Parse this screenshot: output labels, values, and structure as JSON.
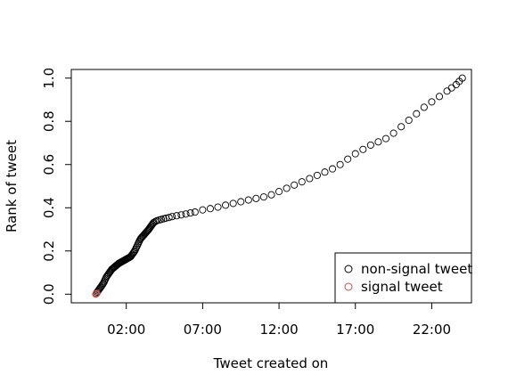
{
  "chart_data": {
    "type": "scatter",
    "title": "",
    "xlabel": "Tweet created on",
    "ylabel": "Rank of tweet",
    "xlim": [
      -1.6,
      24.6
    ],
    "ylim": [
      -0.04,
      1.04
    ],
    "x_unit": "hour of day",
    "x_ticks": [
      {
        "value": 2,
        "label": "02:00"
      },
      {
        "value": 7,
        "label": "07:00"
      },
      {
        "value": 12,
        "label": "12:00"
      },
      {
        "value": 17,
        "label": "17:00"
      },
      {
        "value": 22,
        "label": "22:00"
      }
    ],
    "y_ticks": [
      {
        "value": 0.0,
        "label": "0.0"
      },
      {
        "value": 0.2,
        "label": "0.2"
      },
      {
        "value": 0.4,
        "label": "0.4"
      },
      {
        "value": 0.6,
        "label": "0.6"
      },
      {
        "value": 0.8,
        "label": "0.8"
      },
      {
        "value": 1.0,
        "label": "1.0"
      }
    ],
    "grid": false,
    "legend_position": "bottom-right",
    "marker": "open-circle",
    "series": [
      {
        "name": "non-signal tweet",
        "color": "#000000",
        "points": [
          [
            0.05,
            0.005
          ],
          [
            0.1,
            0.01
          ],
          [
            0.15,
            0.015
          ],
          [
            0.2,
            0.02
          ],
          [
            0.25,
            0.025
          ],
          [
            0.3,
            0.03
          ],
          [
            0.35,
            0.035
          ],
          [
            0.4,
            0.04
          ],
          [
            0.45,
            0.045
          ],
          [
            0.5,
            0.05
          ],
          [
            0.55,
            0.057
          ],
          [
            0.6,
            0.065
          ],
          [
            0.65,
            0.072
          ],
          [
            0.7,
            0.08
          ],
          [
            0.75,
            0.085
          ],
          [
            0.8,
            0.09
          ],
          [
            0.85,
            0.095
          ],
          [
            0.9,
            0.1
          ],
          [
            0.95,
            0.105
          ],
          [
            1.0,
            0.11
          ],
          [
            1.05,
            0.115
          ],
          [
            1.1,
            0.118
          ],
          [
            1.15,
            0.121
          ],
          [
            1.2,
            0.124
          ],
          [
            1.25,
            0.127
          ],
          [
            1.3,
            0.13
          ],
          [
            1.35,
            0.133
          ],
          [
            1.4,
            0.136
          ],
          [
            1.45,
            0.139
          ],
          [
            1.5,
            0.142
          ],
          [
            1.55,
            0.144
          ],
          [
            1.6,
            0.146
          ],
          [
            1.65,
            0.148
          ],
          [
            1.7,
            0.15
          ],
          [
            1.75,
            0.152
          ],
          [
            1.8,
            0.154
          ],
          [
            1.85,
            0.156
          ],
          [
            1.9,
            0.158
          ],
          [
            1.95,
            0.16
          ],
          [
            2.0,
            0.162
          ],
          [
            2.05,
            0.164
          ],
          [
            2.1,
            0.166
          ],
          [
            2.15,
            0.168
          ],
          [
            2.2,
            0.17
          ],
          [
            2.25,
            0.172
          ],
          [
            2.3,
            0.175
          ],
          [
            2.35,
            0.18
          ],
          [
            2.4,
            0.185
          ],
          [
            2.45,
            0.19
          ],
          [
            2.5,
            0.195
          ],
          [
            2.55,
            0.2
          ],
          [
            2.6,
            0.207
          ],
          [
            2.65,
            0.215
          ],
          [
            2.7,
            0.222
          ],
          [
            2.75,
            0.23
          ],
          [
            2.8,
            0.237
          ],
          [
            2.85,
            0.245
          ],
          [
            2.9,
            0.252
          ],
          [
            2.95,
            0.258
          ],
          [
            3.0,
            0.262
          ],
          [
            3.05,
            0.266
          ],
          [
            3.1,
            0.27
          ],
          [
            3.15,
            0.274
          ],
          [
            3.2,
            0.278
          ],
          [
            3.25,
            0.282
          ],
          [
            3.3,
            0.286
          ],
          [
            3.35,
            0.29
          ],
          [
            3.4,
            0.294
          ],
          [
            3.45,
            0.298
          ],
          [
            3.5,
            0.303
          ],
          [
            3.55,
            0.308
          ],
          [
            3.6,
            0.313
          ],
          [
            3.65,
            0.318
          ],
          [
            3.7,
            0.323
          ],
          [
            3.75,
            0.328
          ],
          [
            3.8,
            0.332
          ],
          [
            3.9,
            0.336
          ],
          [
            4.0,
            0.34
          ],
          [
            4.15,
            0.343
          ],
          [
            4.3,
            0.346
          ],
          [
            4.45,
            0.349
          ],
          [
            4.6,
            0.352
          ],
          [
            4.8,
            0.355
          ],
          [
            5.0,
            0.359
          ],
          [
            5.3,
            0.363
          ],
          [
            5.6,
            0.367
          ],
          [
            5.9,
            0.371
          ],
          [
            6.2,
            0.376
          ],
          [
            6.5,
            0.38
          ],
          [
            7.0,
            0.39
          ],
          [
            7.5,
            0.396
          ],
          [
            8.0,
            0.403
          ],
          [
            8.5,
            0.412
          ],
          [
            9.0,
            0.42
          ],
          [
            9.5,
            0.428
          ],
          [
            10.0,
            0.436
          ],
          [
            10.5,
            0.443
          ],
          [
            11.0,
            0.45
          ],
          [
            11.5,
            0.46
          ],
          [
            12.0,
            0.475
          ],
          [
            12.5,
            0.49
          ],
          [
            13.0,
            0.505
          ],
          [
            13.5,
            0.52
          ],
          [
            14.0,
            0.535
          ],
          [
            14.5,
            0.55
          ],
          [
            15.0,
            0.565
          ],
          [
            15.5,
            0.58
          ],
          [
            16.0,
            0.6
          ],
          [
            16.5,
            0.625
          ],
          [
            17.0,
            0.65
          ],
          [
            17.5,
            0.67
          ],
          [
            18.0,
            0.69
          ],
          [
            18.5,
            0.705
          ],
          [
            19.0,
            0.72
          ],
          [
            19.5,
            0.745
          ],
          [
            20.0,
            0.775
          ],
          [
            20.5,
            0.805
          ],
          [
            21.0,
            0.835
          ],
          [
            21.5,
            0.865
          ],
          [
            22.0,
            0.89
          ],
          [
            22.5,
            0.915
          ],
          [
            23.0,
            0.94
          ],
          [
            23.3,
            0.955
          ],
          [
            23.6,
            0.97
          ],
          [
            23.8,
            0.985
          ],
          [
            24.0,
            1.0
          ]
        ]
      },
      {
        "name": "signal tweet",
        "color": "#c0504d",
        "points": [
          [
            0.0,
            0.0
          ],
          [
            0.03,
            0.002
          ],
          [
            0.07,
            0.004
          ]
        ]
      }
    ]
  }
}
